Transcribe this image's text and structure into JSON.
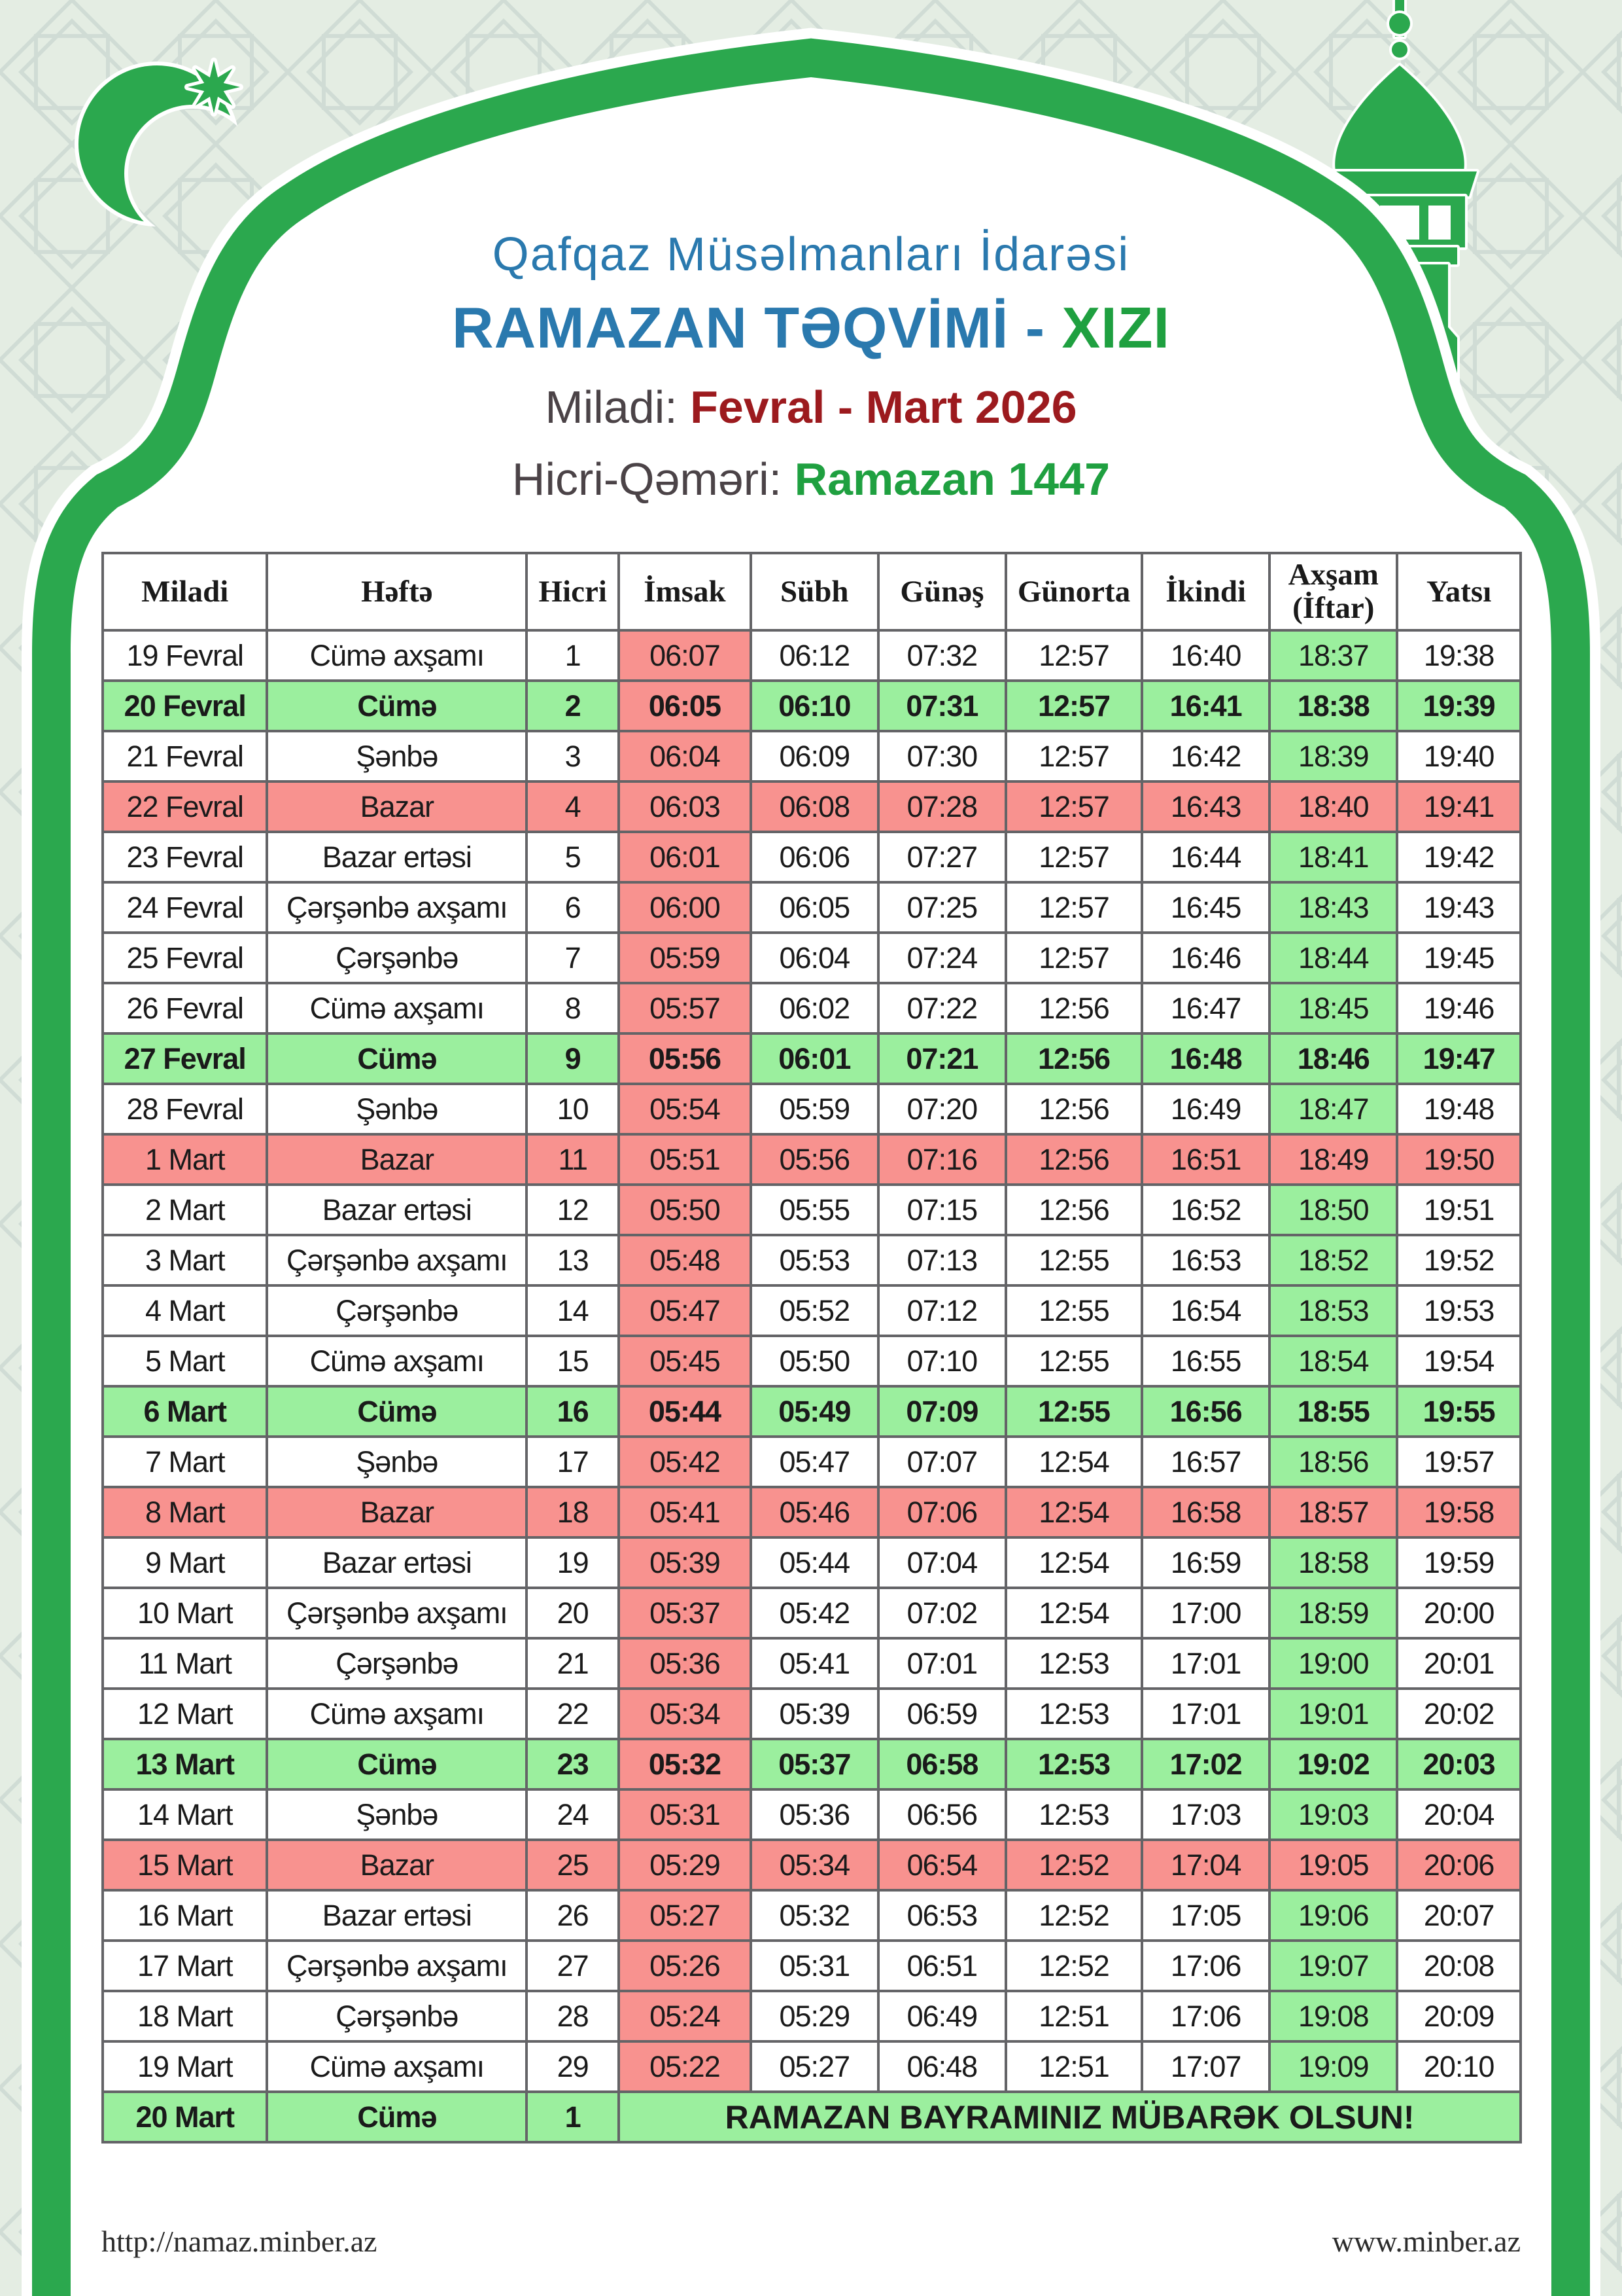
{
  "header": {
    "organization": "Qafqaz Müsəlmanları İdarəsi",
    "title_main": "RAMAZAN TƏQVİMİ -",
    "title_location": "XIZI",
    "miladi_label": "Miladi:",
    "miladi_value": "Fevral - Mart 2026",
    "hicri_label": "Hicri-Qəməri:",
    "hicri_value": "Ramazan 1447"
  },
  "table": {
    "columns": [
      "Miladi",
      "Həftə",
      "Hicri",
      "İmsak",
      "Sübh",
      "Günəş",
      "Günorta",
      "İkindi",
      "Axşam (İftar)",
      "Yatsı"
    ],
    "rows": [
      {
        "date": "19 Fevral",
        "day": "Cümə axşamı",
        "hicri": "1",
        "imsak": "06:07",
        "subh": "06:12",
        "gunes": "07:32",
        "gunorta": "12:57",
        "ikindi": "16:40",
        "axsam": "18:37",
        "yatsi": "19:38",
        "type": "normal"
      },
      {
        "date": "20 Fevral",
        "day": "Cümə",
        "hicri": "2",
        "imsak": "06:05",
        "subh": "06:10",
        "gunes": "07:31",
        "gunorta": "12:57",
        "ikindi": "16:41",
        "axsam": "18:38",
        "yatsi": "19:39",
        "type": "friday"
      },
      {
        "date": "21 Fevral",
        "day": "Şənbə",
        "hicri": "3",
        "imsak": "06:04",
        "subh": "06:09",
        "gunes": "07:30",
        "gunorta": "12:57",
        "ikindi": "16:42",
        "axsam": "18:39",
        "yatsi": "19:40",
        "type": "normal"
      },
      {
        "date": "22 Fevral",
        "day": "Bazar",
        "hicri": "4",
        "imsak": "06:03",
        "subh": "06:08",
        "gunes": "07:28",
        "gunorta": "12:57",
        "ikindi": "16:43",
        "axsam": "18:40",
        "yatsi": "19:41",
        "type": "sunday"
      },
      {
        "date": "23 Fevral",
        "day": "Bazar ertəsi",
        "hicri": "5",
        "imsak": "06:01",
        "subh": "06:06",
        "gunes": "07:27",
        "gunorta": "12:57",
        "ikindi": "16:44",
        "axsam": "18:41",
        "yatsi": "19:42",
        "type": "normal"
      },
      {
        "date": "24 Fevral",
        "day": "Çərşənbə axşamı",
        "hicri": "6",
        "imsak": "06:00",
        "subh": "06:05",
        "gunes": "07:25",
        "gunorta": "12:57",
        "ikindi": "16:45",
        "axsam": "18:43",
        "yatsi": "19:43",
        "type": "normal"
      },
      {
        "date": "25 Fevral",
        "day": "Çərşənbə",
        "hicri": "7",
        "imsak": "05:59",
        "subh": "06:04",
        "gunes": "07:24",
        "gunorta": "12:57",
        "ikindi": "16:46",
        "axsam": "18:44",
        "yatsi": "19:45",
        "type": "normal"
      },
      {
        "date": "26 Fevral",
        "day": "Cümə axşamı",
        "hicri": "8",
        "imsak": "05:57",
        "subh": "06:02",
        "gunes": "07:22",
        "gunorta": "12:56",
        "ikindi": "16:47",
        "axsam": "18:45",
        "yatsi": "19:46",
        "type": "normal"
      },
      {
        "date": "27 Fevral",
        "day": "Cümə",
        "hicri": "9",
        "imsak": "05:56",
        "subh": "06:01",
        "gunes": "07:21",
        "gunorta": "12:56",
        "ikindi": "16:48",
        "axsam": "18:46",
        "yatsi": "19:47",
        "type": "friday"
      },
      {
        "date": "28 Fevral",
        "day": "Şənbə",
        "hicri": "10",
        "imsak": "05:54",
        "subh": "05:59",
        "gunes": "07:20",
        "gunorta": "12:56",
        "ikindi": "16:49",
        "axsam": "18:47",
        "yatsi": "19:48",
        "type": "normal"
      },
      {
        "date": "1 Mart",
        "day": "Bazar",
        "hicri": "11",
        "imsak": "05:51",
        "subh": "05:56",
        "gunes": "07:16",
        "gunorta": "12:56",
        "ikindi": "16:51",
        "axsam": "18:49",
        "yatsi": "19:50",
        "type": "sunday"
      },
      {
        "date": "2 Mart",
        "day": "Bazar ertəsi",
        "hicri": "12",
        "imsak": "05:50",
        "subh": "05:55",
        "gunes": "07:15",
        "gunorta": "12:56",
        "ikindi": "16:52",
        "axsam": "18:50",
        "yatsi": "19:51",
        "type": "normal"
      },
      {
        "date": "3 Mart",
        "day": "Çərşənbə axşamı",
        "hicri": "13",
        "imsak": "05:48",
        "subh": "05:53",
        "gunes": "07:13",
        "gunorta": "12:55",
        "ikindi": "16:53",
        "axsam": "18:52",
        "yatsi": "19:52",
        "type": "normal"
      },
      {
        "date": "4 Mart",
        "day": "Çərşənbə",
        "hicri": "14",
        "imsak": "05:47",
        "subh": "05:52",
        "gunes": "07:12",
        "gunorta": "12:55",
        "ikindi": "16:54",
        "axsam": "18:53",
        "yatsi": "19:53",
        "type": "normal"
      },
      {
        "date": "5 Mart",
        "day": "Cümə axşamı",
        "hicri": "15",
        "imsak": "05:45",
        "subh": "05:50",
        "gunes": "07:10",
        "gunorta": "12:55",
        "ikindi": "16:55",
        "axsam": "18:54",
        "yatsi": "19:54",
        "type": "normal"
      },
      {
        "date": "6 Mart",
        "day": "Cümə",
        "hicri": "16",
        "imsak": "05:44",
        "subh": "05:49",
        "gunes": "07:09",
        "gunorta": "12:55",
        "ikindi": "16:56",
        "axsam": "18:55",
        "yatsi": "19:55",
        "type": "friday"
      },
      {
        "date": "7 Mart",
        "day": "Şənbə",
        "hicri": "17",
        "imsak": "05:42",
        "subh": "05:47",
        "gunes": "07:07",
        "gunorta": "12:54",
        "ikindi": "16:57",
        "axsam": "18:56",
        "yatsi": "19:57",
        "type": "normal"
      },
      {
        "date": "8 Mart",
        "day": "Bazar",
        "hicri": "18",
        "imsak": "05:41",
        "subh": "05:46",
        "gunes": "07:06",
        "gunorta": "12:54",
        "ikindi": "16:58",
        "axsam": "18:57",
        "yatsi": "19:58",
        "type": "sunday"
      },
      {
        "date": "9 Mart",
        "day": "Bazar ertəsi",
        "hicri": "19",
        "imsak": "05:39",
        "subh": "05:44",
        "gunes": "07:04",
        "gunorta": "12:54",
        "ikindi": "16:59",
        "axsam": "18:58",
        "yatsi": "19:59",
        "type": "normal"
      },
      {
        "date": "10 Mart",
        "day": "Çərşənbə axşamı",
        "hicri": "20",
        "imsak": "05:37",
        "subh": "05:42",
        "gunes": "07:02",
        "gunorta": "12:54",
        "ikindi": "17:00",
        "axsam": "18:59",
        "yatsi": "20:00",
        "type": "normal"
      },
      {
        "date": "11 Mart",
        "day": "Çərşənbə",
        "hicri": "21",
        "imsak": "05:36",
        "subh": "05:41",
        "gunes": "07:01",
        "gunorta": "12:53",
        "ikindi": "17:01",
        "axsam": "19:00",
        "yatsi": "20:01",
        "type": "normal"
      },
      {
        "date": "12 Mart",
        "day": "Cümə axşamı",
        "hicri": "22",
        "imsak": "05:34",
        "subh": "05:39",
        "gunes": "06:59",
        "gunorta": "12:53",
        "ikindi": "17:01",
        "axsam": "19:01",
        "yatsi": "20:02",
        "type": "normal"
      },
      {
        "date": "13 Mart",
        "day": "Cümə",
        "hicri": "23",
        "imsak": "05:32",
        "subh": "05:37",
        "gunes": "06:58",
        "gunorta": "12:53",
        "ikindi": "17:02",
        "axsam": "19:02",
        "yatsi": "20:03",
        "type": "friday"
      },
      {
        "date": "14 Mart",
        "day": "Şənbə",
        "hicri": "24",
        "imsak": "05:31",
        "subh": "05:36",
        "gunes": "06:56",
        "gunorta": "12:53",
        "ikindi": "17:03",
        "axsam": "19:03",
        "yatsi": "20:04",
        "type": "normal"
      },
      {
        "date": "15 Mart",
        "day": "Bazar",
        "hicri": "25",
        "imsak": "05:29",
        "subh": "05:34",
        "gunes": "06:54",
        "gunorta": "12:52",
        "ikindi": "17:04",
        "axsam": "19:05",
        "yatsi": "20:06",
        "type": "sunday"
      },
      {
        "date": "16 Mart",
        "day": "Bazar ertəsi",
        "hicri": "26",
        "imsak": "05:27",
        "subh": "05:32",
        "gunes": "06:53",
        "gunorta": "12:52",
        "ikindi": "17:05",
        "axsam": "19:06",
        "yatsi": "20:07",
        "type": "normal"
      },
      {
        "date": "17 Mart",
        "day": "Çərşənbə axşamı",
        "hicri": "27",
        "imsak": "05:26",
        "subh": "05:31",
        "gunes": "06:51",
        "gunorta": "12:52",
        "ikindi": "17:06",
        "axsam": "19:07",
        "yatsi": "20:08",
        "type": "normal"
      },
      {
        "date": "18 Mart",
        "day": "Çərşənbə",
        "hicri": "28",
        "imsak": "05:24",
        "subh": "05:29",
        "gunes": "06:49",
        "gunorta": "12:51",
        "ikindi": "17:06",
        "axsam": "19:08",
        "yatsi": "20:09",
        "type": "normal"
      },
      {
        "date": "19 Mart",
        "day": "Cümə axşamı",
        "hicri": "29",
        "imsak": "05:22",
        "subh": "05:27",
        "gunes": "06:48",
        "gunorta": "12:51",
        "ikindi": "17:07",
        "axsam": "19:09",
        "yatsi": "20:10",
        "type": "normal"
      },
      {
        "date": "20 Mart",
        "day": "Cümə",
        "hicri": "1",
        "message": "RAMAZAN BAYRAMINIZ MÜBARƏK OLSUN!",
        "type": "friday"
      }
    ]
  },
  "footer": {
    "left_url": "http://namaz.minber.az",
    "right_url": "www.minber.az"
  },
  "decorations": {
    "crescent_star": "crescent-star-icon",
    "minaret": "minaret-icon",
    "pattern": "islamic-geometric-pattern"
  },
  "colors": {
    "page-bg": "#E4EDE3",
    "pattern-line": "#CBD8D2",
    "frame-green": "#2BA84E",
    "cell-green": "#9BEF9E",
    "cell-pink": "#F8928F",
    "border-gray": "#646467",
    "blue": "#2A79AE",
    "accent-green": "#1FA040",
    "maroon": "#9C1A1E",
    "label-dark": "#4B4347",
    "text-dark": "#1A1A1A",
    "footer-text": "#2B2B2B"
  }
}
